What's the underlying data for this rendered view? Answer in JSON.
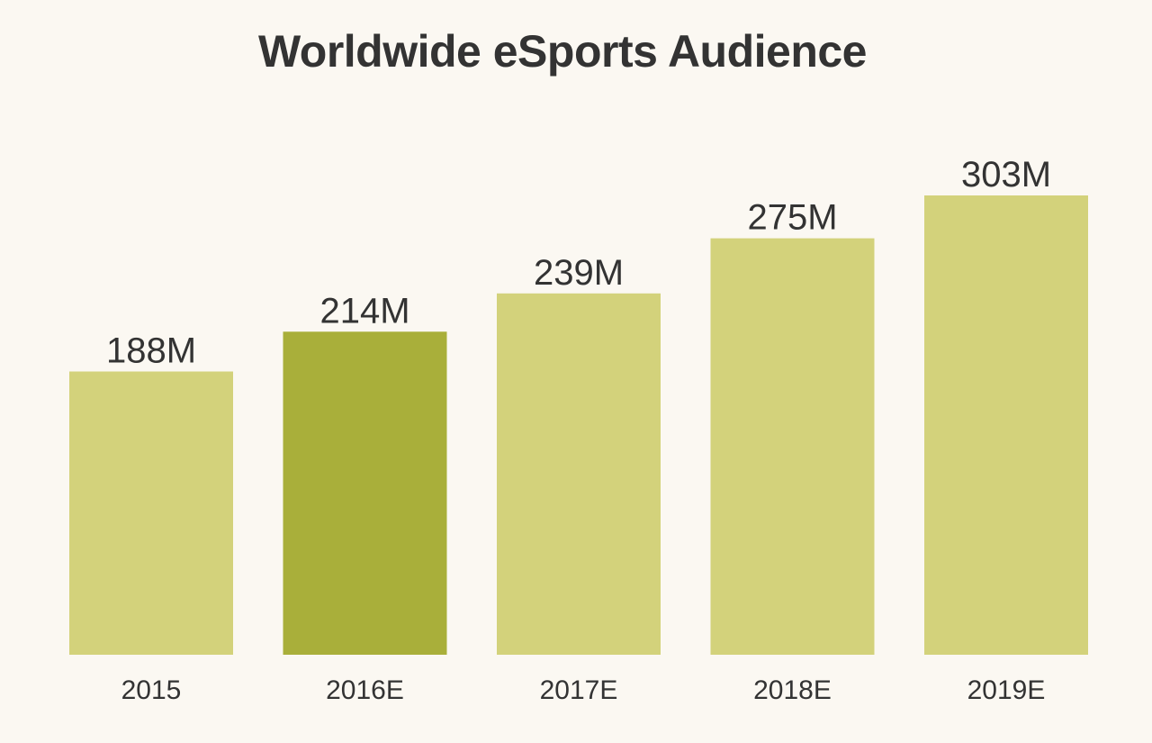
{
  "chart_data": {
    "type": "bar",
    "title": "Worldwide eSports Audience",
    "xlabel": "",
    "ylabel": "",
    "categories": [
      "2015",
      "2016E",
      "2017E",
      "2018E",
      "2019E"
    ],
    "values": [
      188,
      214,
      239,
      275,
      303
    ],
    "data_labels": [
      "188M",
      "214M",
      "239M",
      "275M",
      "303M"
    ],
    "ylim": [
      0,
      303
    ],
    "grid": false,
    "legend": "none",
    "highlight_index": 1,
    "colors": {
      "bar": "#d3d27b",
      "highlight": "#a9af3a",
      "text": "#333333",
      "background": "#fbf8f2"
    }
  }
}
